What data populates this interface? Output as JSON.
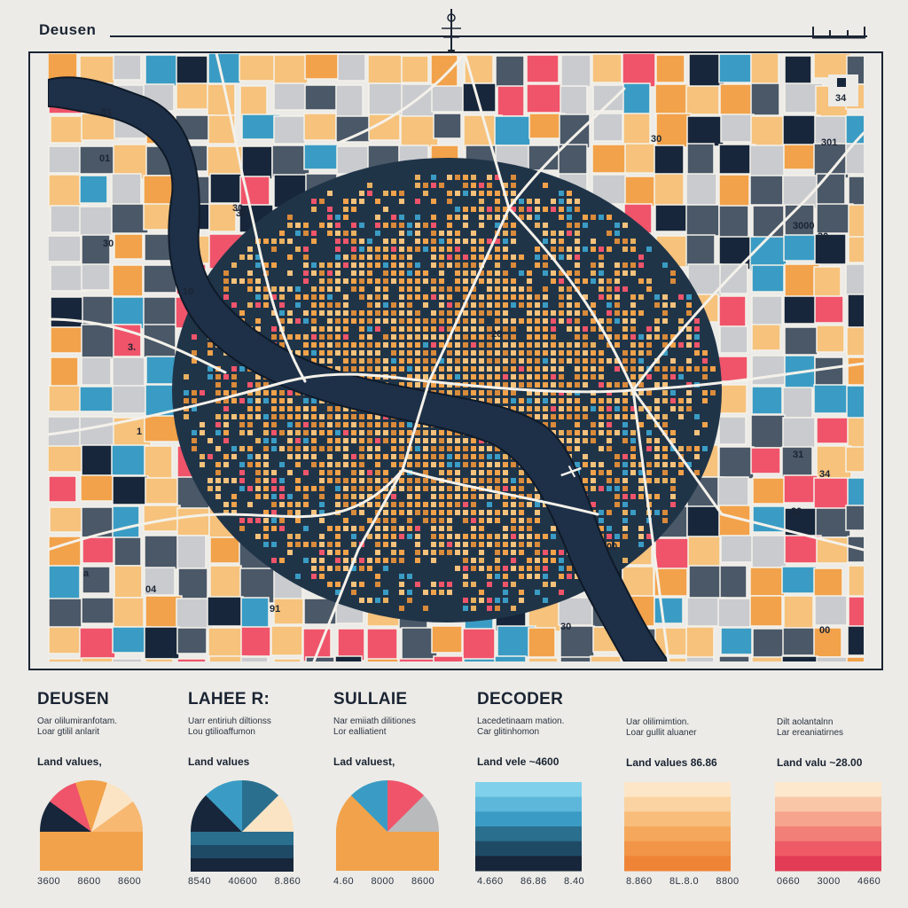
{
  "header": {
    "title": "Deusen",
    "scale_label": "34"
  },
  "map": {
    "parcel_labels": [
      "01",
      "30",
      "3.",
      "10",
      "30",
      "04",
      "30",
      "3000",
      "31",
      "34",
      "20",
      "30",
      "01",
      "30",
      "00",
      "20",
      "30",
      "301",
      "a",
      "00",
      "91",
      "1"
    ],
    "colors": {
      "navy": "#17263a",
      "river": "#1e3048",
      "orange": "#f2a24a",
      "peach": "#f6c27c",
      "pink": "#f0546a",
      "teal": "#3a9cc4",
      "gray": "#c9cbcf",
      "slate": "#4a5868"
    }
  },
  "legend": [
    {
      "heading": "DEUSEN",
      "description": "Oar olilumiranfotam.\nLoar gtilil anlarit",
      "sub_label": "Land values,",
      "ticks": "3600 8600 8600",
      "type": "pie",
      "colors": [
        "#17263a",
        "#f0546a",
        "#f2a24a",
        "#fbe4c4",
        "#f7b872"
      ]
    },
    {
      "heading": "LAHEE R:",
      "description": "Uarr entiriuh diltionss\nLou gtilioaffumon",
      "sub_label": "Land values",
      "ticks": "8540 40600 8.860",
      "type": "semi",
      "colors": [
        "#17263a",
        "#3a9cc4",
        "#2b6f8f",
        "#fbe4c4"
      ]
    },
    {
      "heading": "SULLAIE",
      "description": "Nar emiiath dilitiones\nLor ealliatient",
      "sub_label": "Lad valuest,",
      "ticks": "4.60 8000 8600",
      "type": "pie",
      "colors": [
        "#f2a24a",
        "#3a9cc4",
        "#f0546a",
        "#b9babc"
      ]
    },
    {
      "heading": "DECODER",
      "description": "Lacedetinaam mation.\nCar glitinhomon",
      "sub_label": "Land vele ~4600",
      "ticks": "4.660 86.86 8.40",
      "type": "bands",
      "colors": [
        "#7fd0ea",
        "#5cb7db",
        "#3a9cc4",
        "#2b6f8f",
        "#1e4a66",
        "#17263a"
      ]
    },
    {
      "heading": "",
      "description": "Uar olilimimtion.\nLoar gullit aluaner",
      "sub_label": "Land values 86.86",
      "ticks": "8.860 8L.8.0 8800",
      "type": "bands",
      "colors": [
        "#fde6c7",
        "#fbd3a2",
        "#f8bd7b",
        "#f5a85c",
        "#f29548",
        "#ef8437"
      ]
    },
    {
      "heading": "",
      "description": "Dilt aolantalnn\nLar ereaniatirnes",
      "sub_label": "Land valu ~28.00",
      "ticks": "0660 3000 4660",
      "type": "bands",
      "colors": [
        "#fde7cd",
        "#f9c7a8",
        "#f6a48e",
        "#f27f78",
        "#ee5a66",
        "#e23c56"
      ]
    }
  ]
}
